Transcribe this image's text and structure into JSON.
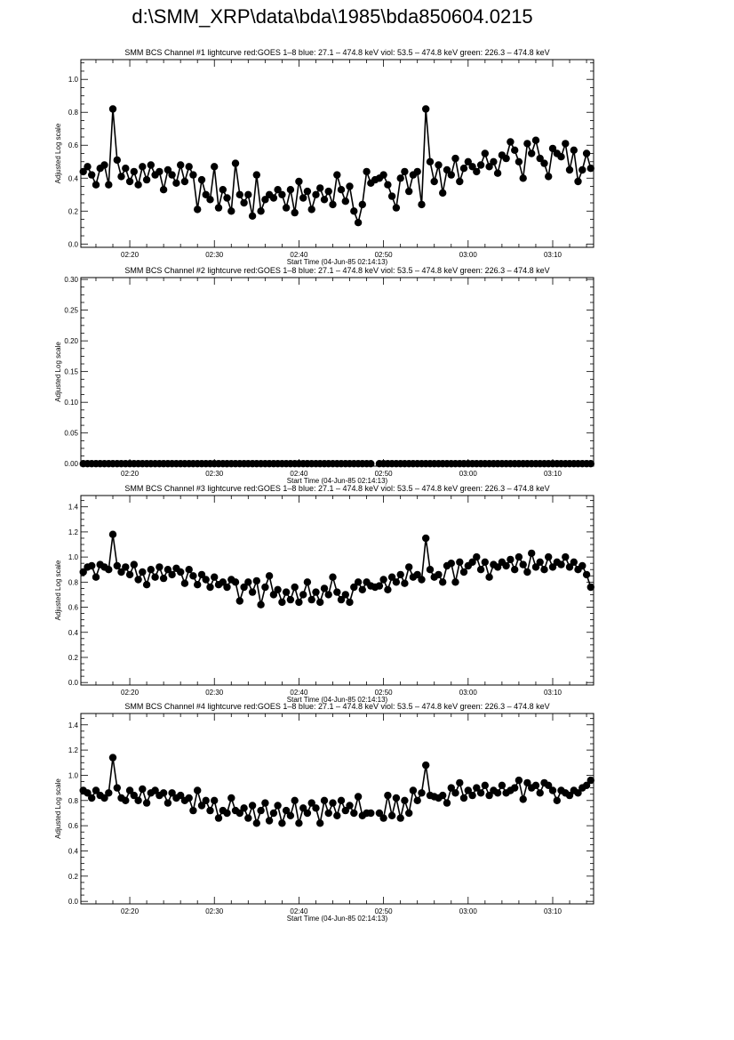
{
  "page_title": "d:\\SMM_XRP\\data\\bda\\1985\\bda850604.0215",
  "chart_data": [
    {
      "type": "scatter-line",
      "title": "SMM BCS Channel #1 lightcurve  red:GOES 1–8  blue: 27.1 – 474.8 keV  viol: 53.5 – 474.8 keV  green: 226.3 – 474.8 keV",
      "xlabel": "Start Time (04-Jun-85 02:14:13)",
      "ylabel": "Adjusted Log scale",
      "xlim": [
        "02:14:13",
        "03:14:50"
      ],
      "ylim": [
        -0.02,
        1.12
      ],
      "xticks": [
        "02:20",
        "02:30",
        "02:40",
        "02:50",
        "03:00",
        "03:10"
      ],
      "yticks": [
        "0.0",
        "0.2",
        "0.4",
        "0.6",
        "0.8",
        "1.0"
      ],
      "color": "#000000",
      "x_start": "02:14:30",
      "x_step_seconds": 30,
      "values": [
        0.44,
        0.47,
        0.42,
        0.36,
        0.46,
        0.48,
        0.36,
        0.82,
        0.51,
        0.41,
        0.46,
        0.38,
        0.44,
        0.36,
        0.47,
        0.39,
        0.48,
        0.42,
        0.44,
        0.33,
        0.45,
        0.42,
        0.37,
        0.48,
        0.38,
        0.47,
        0.42,
        0.21,
        0.39,
        0.3,
        0.27,
        0.47,
        0.22,
        0.33,
        0.28,
        0.2,
        0.49,
        0.3,
        0.25,
        0.3,
        0.17,
        0.42,
        0.2,
        0.27,
        0.3,
        0.28,
        0.33,
        0.3,
        0.22,
        0.33,
        0.19,
        0.38,
        0.28,
        0.32,
        0.21,
        0.3,
        0.34,
        0.27,
        0.32,
        0.24,
        0.42,
        0.33,
        0.26,
        0.35,
        0.2,
        0.13,
        0.24,
        0.44,
        0.37,
        0.39,
        0.4,
        0.42,
        0.36,
        0.29,
        0.22,
        0.4,
        0.44,
        0.32,
        0.42,
        0.44,
        0.24,
        0.82,
        0.5,
        0.38,
        0.48,
        0.31,
        0.45,
        0.42,
        0.52,
        0.38,
        0.46,
        0.5,
        0.47,
        0.44,
        0.48,
        0.55,
        0.47,
        0.5,
        0.43,
        0.54,
        0.52,
        0.62,
        0.57,
        0.5,
        0.4,
        0.61,
        0.55,
        0.63,
        0.52,
        0.49,
        0.41,
        0.58,
        0.55,
        0.53,
        0.61,
        0.45,
        0.57,
        0.38,
        0.45,
        0.55,
        0.46
      ]
    },
    {
      "type": "scatter-line",
      "title": "SMM BCS Channel #2 lightcurve  red:GOES 1–8  blue: 27.1 – 474.8 keV  viol: 53.5 – 474.8 keV  green: 226.3 – 474.8 keV",
      "xlabel": "Start Time (04-Jun-85 02:14:13)",
      "ylabel": "Adjusted Log scale",
      "xlim": [
        "02:14:13",
        "03:14:50"
      ],
      "ylim": [
        -0.004,
        0.303
      ],
      "xticks": [
        "02:20",
        "02:30",
        "02:40",
        "02:50",
        "03:00",
        "03:10"
      ],
      "yticks": [
        "0.00",
        "0.05",
        "0.10",
        "0.15",
        "0.20",
        "0.25",
        "0.30"
      ],
      "color": "#000000",
      "x_start": "02:14:30",
      "x_step_seconds": 30,
      "values": [
        0,
        0,
        0,
        0,
        0,
        0,
        0,
        0,
        0,
        0,
        0,
        0,
        0,
        0,
        0,
        0,
        0,
        0,
        0,
        0,
        0,
        0,
        0,
        0,
        0,
        0,
        0,
        0,
        0,
        0,
        0,
        0,
        0,
        0,
        0,
        0,
        0,
        0,
        0,
        0,
        0,
        0,
        0,
        0,
        0,
        0,
        0,
        0,
        0,
        0,
        0,
        0,
        0,
        0,
        0,
        0,
        0,
        0,
        0,
        0,
        0,
        0,
        0,
        0,
        0,
        0,
        0,
        0,
        0,
        null,
        0,
        0,
        0,
        0,
        0,
        0,
        0,
        0,
        0,
        0,
        0,
        0,
        0,
        0,
        0,
        0,
        0,
        0,
        0,
        0,
        0,
        0,
        0,
        0,
        0,
        0,
        0,
        0,
        0,
        0,
        0,
        0,
        0,
        0,
        0,
        0,
        0,
        0,
        0,
        0,
        0,
        0,
        0,
        0,
        0,
        0,
        0,
        0,
        0,
        0,
        0
      ]
    },
    {
      "type": "scatter-line",
      "title": "SMM BCS Channel #3 lightcurve  red:GOES 1–8  blue: 27.1 – 474.8 keV  viol: 53.5 – 474.8 keV  green: 226.3 – 474.8 keV",
      "xlabel": "Start Time (04-Jun-85 02:14:13)",
      "ylabel": "Adjusted Log scale",
      "xlim": [
        "02:14:13",
        "03:14:50"
      ],
      "ylim": [
        -0.02,
        1.49
      ],
      "xticks": [
        "02:20",
        "02:30",
        "02:40",
        "02:50",
        "03:00",
        "03:10"
      ],
      "yticks": [
        "0.0",
        "0.2",
        "0.4",
        "0.6",
        "0.8",
        "1.0",
        "1.2",
        "1.4"
      ],
      "color": "#000000",
      "x_start": "02:14:30",
      "x_step_seconds": 30,
      "values": [
        0.88,
        0.92,
        0.93,
        0.84,
        0.94,
        0.92,
        0.9,
        1.18,
        0.93,
        0.88,
        0.92,
        0.86,
        0.94,
        0.82,
        0.88,
        0.78,
        0.9,
        0.84,
        0.92,
        0.83,
        0.9,
        0.86,
        0.91,
        0.88,
        0.79,
        0.9,
        0.85,
        0.78,
        0.86,
        0.82,
        0.76,
        0.84,
        0.78,
        0.8,
        0.76,
        0.82,
        0.8,
        0.65,
        0.76,
        0.8,
        0.72,
        0.81,
        0.62,
        0.76,
        0.85,
        0.7,
        0.74,
        0.64,
        0.72,
        0.66,
        0.76,
        0.64,
        0.7,
        0.8,
        0.66,
        0.72,
        0.64,
        0.75,
        0.7,
        0.84,
        0.72,
        0.66,
        0.7,
        0.64,
        0.76,
        0.8,
        0.74,
        0.8,
        0.77,
        0.76,
        0.77,
        0.82,
        0.74,
        0.84,
        0.8,
        0.86,
        0.79,
        0.92,
        0.84,
        0.86,
        0.82,
        1.15,
        0.9,
        0.84,
        0.86,
        0.8,
        0.93,
        0.95,
        0.8,
        0.96,
        0.88,
        0.93,
        0.96,
        1.0,
        0.9,
        0.96,
        0.84,
        0.94,
        0.92,
        0.96,
        0.93,
        0.98,
        0.9,
        1.0,
        0.94,
        0.88,
        1.03,
        0.92,
        0.96,
        0.9,
        1.0,
        0.92,
        0.96,
        0.94,
        1.0,
        0.92,
        0.96,
        0.9,
        0.93,
        0.86,
        0.76
      ]
    },
    {
      "type": "scatter-line",
      "title": "SMM BCS Channel #4 lightcurve  red:GOES 1–8  blue: 27.1 – 474.8 keV  viol: 53.5 – 474.8 keV  green: 226.3 – 474.8 keV",
      "xlabel": "Start Time (04-Jun-85 02:14:13)",
      "ylabel": "Adjusted Log scale",
      "xlim": [
        "02:14:13",
        "03:14:50"
      ],
      "ylim": [
        -0.02,
        1.49
      ],
      "xticks": [
        "02:20",
        "02:30",
        "02:40",
        "02:50",
        "03:00",
        "03:10"
      ],
      "yticks": [
        "0.0",
        "0.2",
        "0.4",
        "0.6",
        "0.8",
        "1.0",
        "1.2",
        "1.4"
      ],
      "color": "#000000",
      "x_start": "02:14:30",
      "x_step_seconds": 30,
      "values": [
        0.88,
        0.86,
        0.82,
        0.88,
        0.84,
        0.82,
        0.86,
        1.14,
        0.9,
        0.82,
        0.8,
        0.88,
        0.84,
        0.8,
        0.89,
        0.78,
        0.86,
        0.88,
        0.84,
        0.86,
        0.78,
        0.86,
        0.82,
        0.84,
        0.8,
        0.82,
        0.72,
        0.88,
        0.76,
        0.8,
        0.72,
        0.8,
        0.66,
        0.72,
        0.7,
        0.82,
        0.72,
        0.7,
        0.74,
        0.66,
        0.76,
        0.62,
        0.72,
        0.78,
        0.64,
        0.7,
        0.76,
        0.62,
        0.72,
        0.68,
        0.8,
        0.62,
        0.74,
        0.7,
        0.78,
        0.74,
        0.62,
        0.8,
        0.7,
        0.78,
        0.68,
        0.8,
        0.72,
        0.76,
        0.7,
        0.83,
        0.68,
        0.7,
        0.7,
        null,
        0.7,
        0.66,
        0.84,
        0.68,
        0.82,
        0.66,
        0.8,
        0.7,
        0.88,
        0.8,
        0.86,
        1.08,
        0.84,
        0.83,
        0.82,
        0.84,
        0.78,
        0.9,
        0.86,
        0.94,
        0.82,
        0.88,
        0.84,
        0.9,
        0.86,
        0.92,
        0.84,
        0.88,
        0.86,
        0.92,
        0.86,
        0.88,
        0.9,
        0.96,
        0.81,
        0.94,
        0.9,
        0.92,
        0.86,
        0.94,
        0.92,
        0.88,
        0.8,
        0.88,
        0.86,
        0.84,
        0.88,
        0.86,
        0.9,
        0.92,
        0.96
      ]
    }
  ]
}
